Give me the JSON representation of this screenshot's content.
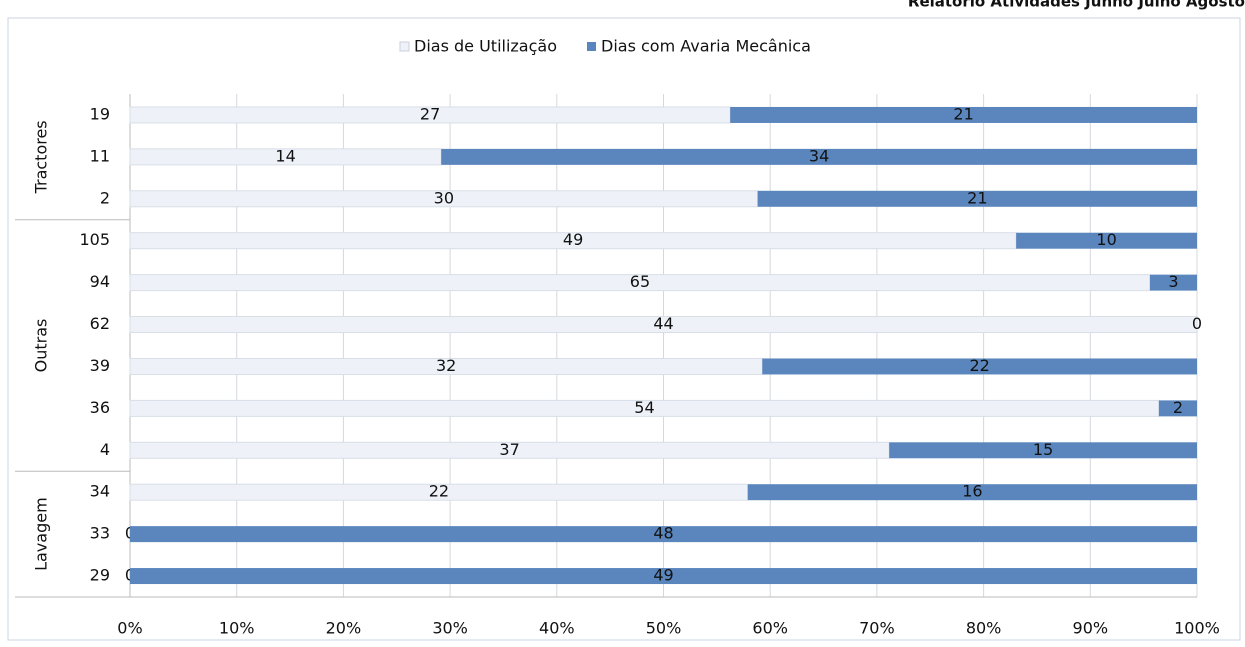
{
  "chart_data": {
    "type": "bar100h",
    "header": "Relatório Atividades Junho Julho Agosto",
    "category_groups": [
      {
        "name": "Tractores",
        "categories": [
          "19",
          "11",
          "2"
        ]
      },
      {
        "name": "Outras",
        "categories": [
          "105",
          "94",
          "62",
          "39",
          "36",
          "4"
        ]
      },
      {
        "name": "Lavagem",
        "categories": [
          "34",
          "33",
          "29"
        ]
      }
    ],
    "series": [
      {
        "name": "Dias de Utilização",
        "color": "#eef2f8",
        "values": [
          27,
          14,
          30,
          49,
          65,
          44,
          32,
          54,
          37,
          22,
          0,
          0
        ]
      },
      {
        "name": "Dias com Avaria Mecânica",
        "color": "#5a86bd",
        "values": [
          21,
          34,
          21,
          10,
          3,
          0,
          22,
          2,
          15,
          16,
          48,
          49
        ]
      }
    ],
    "xlim": [
      0,
      100
    ],
    "xticks": [
      {
        "value": 0,
        "label": "0%"
      },
      {
        "value": 10,
        "label": "10%"
      },
      {
        "value": 20,
        "label": "20%"
      },
      {
        "value": 30,
        "label": "30%"
      },
      {
        "value": 40,
        "label": "40%"
      },
      {
        "value": 50,
        "label": "50%"
      },
      {
        "value": 60,
        "label": "60%"
      },
      {
        "value": 70,
        "label": "70%"
      },
      {
        "value": 80,
        "label": "80%"
      },
      {
        "value": 90,
        "label": "90%"
      },
      {
        "value": 100,
        "label": "100%"
      }
    ],
    "grid": true,
    "legend": "top"
  }
}
